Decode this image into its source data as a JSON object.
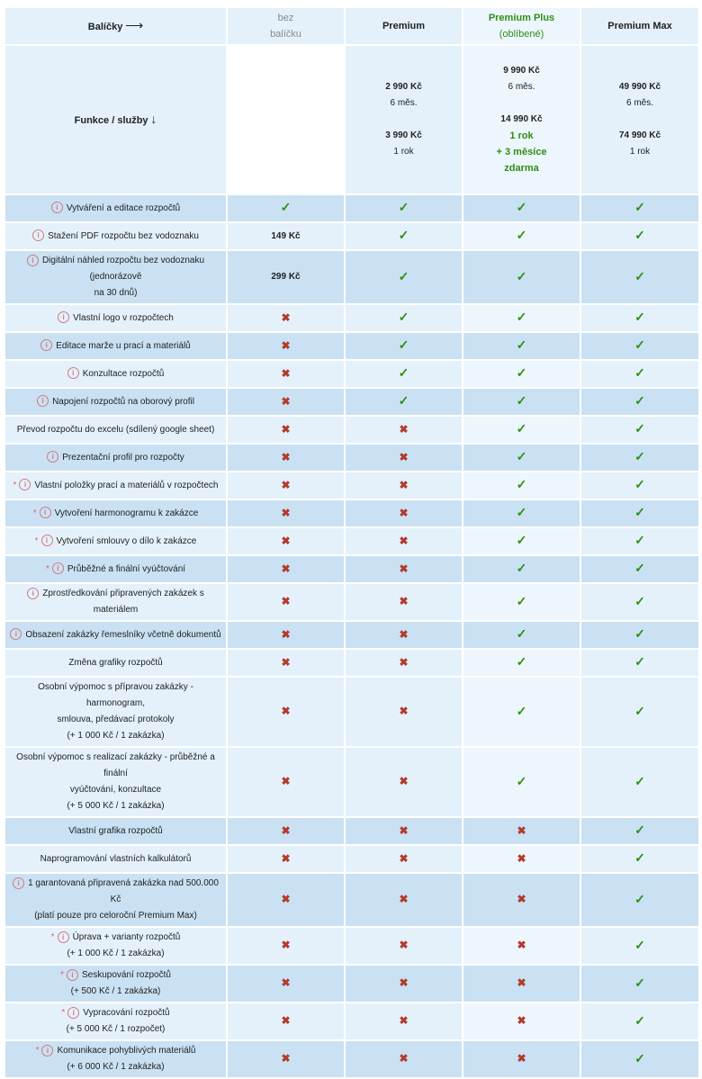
{
  "header": {
    "packages_label": "Balíčky",
    "packages_arrow": "⟶",
    "features_label": "Funkce / služby",
    "features_arrow": "↓",
    "bez_line1": "bez",
    "bez_line2": "balíčku",
    "premium": "Premium",
    "plus": "Premium Plus",
    "plus_note": "(oblíbené)",
    "max": "Premium Max"
  },
  "pricing": {
    "premium": {
      "p1": "2 990 Kč",
      "t1": "6 měs.",
      "p2": "3 990 Kč",
      "t2": "1 rok"
    },
    "plus": {
      "p1": "9 990 Kč",
      "t1": "6 měs.",
      "p2": "14 990 Kč",
      "g1": "1 rok",
      "g2": "+ 3 měsíce",
      "g3": "zdarma"
    },
    "max": {
      "p1": "49 990 Kč",
      "t1": "6 měs.",
      "p2": "74 990 Kč",
      "t2": "1 rok"
    }
  },
  "icons": {
    "check": "✓",
    "cross": "✖",
    "info": "i",
    "star": "*"
  },
  "rows": [
    {
      "shade": "dark",
      "info": true,
      "star": false,
      "lines": [
        "Vytváření a editace rozpočtů"
      ],
      "bez": "check",
      "prem": "check",
      "plus": "check",
      "max": "check"
    },
    {
      "shade": "light",
      "info": true,
      "star": false,
      "lines": [
        "Stažení PDF rozpočtu bez vodoznaku"
      ],
      "bez": "149 Kč",
      "prem": "check",
      "plus": "check",
      "max": "check"
    },
    {
      "shade": "dark",
      "info": true,
      "star": false,
      "lines": [
        "Digitální náhled rozpočtu bez vodoznaku (jednorázově",
        "na 30 dnů)"
      ],
      "bez": "299 Kč",
      "prem": "check",
      "plus": "check",
      "max": "check"
    },
    {
      "shade": "light",
      "info": true,
      "star": false,
      "lines": [
        "Vlastní logo v rozpočtech"
      ],
      "bez": "cross",
      "prem": "check",
      "plus": "check",
      "max": "check"
    },
    {
      "shade": "dark",
      "info": true,
      "star": false,
      "lines": [
        "Editace marže u prací a materiálů"
      ],
      "bez": "cross",
      "prem": "check",
      "plus": "check",
      "max": "check"
    },
    {
      "shade": "light",
      "info": true,
      "star": false,
      "lines": [
        "Konzultace rozpočtů"
      ],
      "bez": "cross",
      "prem": "check",
      "plus": "check",
      "max": "check"
    },
    {
      "shade": "dark",
      "info": true,
      "star": false,
      "lines": [
        "Napojení rozpočtů na oborový profil"
      ],
      "bez": "cross",
      "prem": "check",
      "plus": "check",
      "max": "check"
    },
    {
      "shade": "light",
      "info": false,
      "star": false,
      "lines": [
        "Převod rozpočtu do excelu (sdílený google sheet)"
      ],
      "bez": "cross",
      "prem": "cross",
      "plus": "check",
      "max": "check"
    },
    {
      "shade": "dark",
      "info": true,
      "star": false,
      "lines": [
        "Prezentační profil pro rozpočty"
      ],
      "bez": "cross",
      "prem": "cross",
      "plus": "check",
      "max": "check"
    },
    {
      "shade": "light",
      "info": true,
      "star": true,
      "lines": [
        "Vlastní položky prací a materiálů v rozpočtech"
      ],
      "bez": "cross",
      "prem": "cross",
      "plus": "check",
      "max": "check"
    },
    {
      "shade": "dark",
      "info": true,
      "star": true,
      "lines": [
        "Vytvoření harmonogramu k zakázce"
      ],
      "bez": "cross",
      "prem": "cross",
      "plus": "check",
      "max": "check"
    },
    {
      "shade": "light",
      "info": true,
      "star": true,
      "lines": [
        "Vytvoření smlouvy o dílo k zakázce"
      ],
      "bez": "cross",
      "prem": "cross",
      "plus": "check",
      "max": "check"
    },
    {
      "shade": "dark",
      "info": true,
      "star": true,
      "lines": [
        "Průběžné a finální vyúčtování"
      ],
      "bez": "cross",
      "prem": "cross",
      "plus": "check",
      "max": "check"
    },
    {
      "shade": "light",
      "info": true,
      "star": false,
      "lines": [
        "Zprostředkování připravených zakázek s materiálem"
      ],
      "bez": "cross",
      "prem": "cross",
      "plus": "check",
      "max": "check"
    },
    {
      "shade": "dark",
      "info": true,
      "star": false,
      "lines": [
        "Obsazení zakázky řemeslníky včetně dokumentů"
      ],
      "bez": "cross",
      "prem": "cross",
      "plus": "check",
      "max": "check"
    },
    {
      "shade": "light",
      "info": false,
      "star": false,
      "lines": [
        "Změna grafiky rozpočtů"
      ],
      "bez": "cross",
      "prem": "cross",
      "plus": "check",
      "max": "check"
    },
    {
      "shade": "light",
      "info": false,
      "star": false,
      "lines": [
        "Osobní výpomoc s přípravou zakázky - harmonogram,",
        "smlouva, předávací protokoly",
        "(+ 1 000 Kč / 1 zakázka)"
      ],
      "bez": "cross",
      "prem": "cross",
      "plus": "check",
      "max": "check"
    },
    {
      "shade": "light",
      "info": false,
      "star": false,
      "lines": [
        "Osobní výpomoc s realizací zakázky - průběžné a finální",
        "vyúčtování, konzultace",
        "(+ 5 000 Kč / 1 zakázka)"
      ],
      "bez": "cross",
      "prem": "cross",
      "plus": "check",
      "max": "check"
    },
    {
      "shade": "dark",
      "info": false,
      "star": false,
      "lines": [
        "Vlastní grafika rozpočtů"
      ],
      "bez": "cross",
      "prem": "cross",
      "plus": "cross",
      "max": "check"
    },
    {
      "shade": "light",
      "info": false,
      "star": false,
      "lines": [
        "Naprogramování vlastních kalkulátorů"
      ],
      "bez": "cross",
      "prem": "cross",
      "plus": "cross",
      "max": "check"
    },
    {
      "shade": "dark",
      "info": true,
      "star": false,
      "lines": [
        "1 garantovaná připravená zakázka nad 500.000 Kč",
        "(platí pouze pro celoroční Premium Max)"
      ],
      "bez": "cross",
      "prem": "cross",
      "plus": "cross",
      "max": "check"
    },
    {
      "shade": "light",
      "info": true,
      "star": true,
      "lines": [
        "Úprava + varianty rozpočtů",
        "(+ 1 000 Kč / 1 zakázka)"
      ],
      "bez": "cross",
      "prem": "cross",
      "plus": "cross",
      "max": "check"
    },
    {
      "shade": "dark",
      "info": true,
      "star": true,
      "lines": [
        "Seskupování rozpočtů",
        "(+ 500 Kč / 1 zakázka)"
      ],
      "bez": "cross",
      "prem": "cross",
      "plus": "cross",
      "max": "check"
    },
    {
      "shade": "light",
      "info": true,
      "star": true,
      "lines": [
        "Vypracování rozpočtů",
        "(+ 5 000 Kč / 1 rozpočet)"
      ],
      "bez": "cross",
      "prem": "cross",
      "plus": "cross",
      "max": "check"
    },
    {
      "shade": "dark",
      "info": true,
      "star": true,
      "lines": [
        "Komunikace pohyblivých materiálů",
        "(+ 6 000 Kč / 1 zakázka)"
      ],
      "bez": "cross",
      "prem": "cross",
      "plus": "cross",
      "max": "check"
    }
  ]
}
